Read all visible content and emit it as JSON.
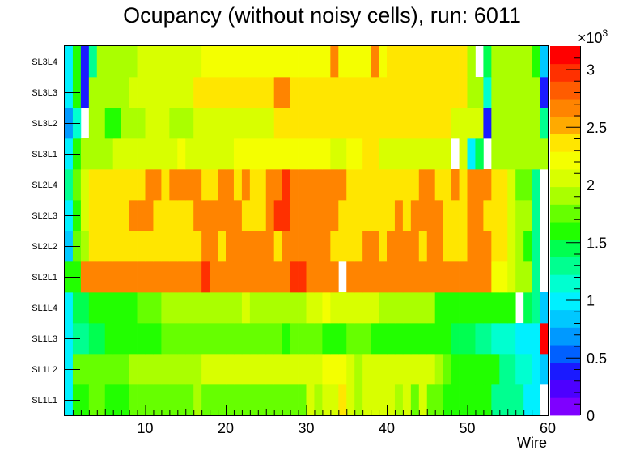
{
  "chart_data": {
    "type": "heatmap",
    "title": "Ocupancy (without noisy cells), run: 6011",
    "xlabel": "Wire",
    "ylabel": "",
    "x_range": [
      0,
      60
    ],
    "x_ticks": [
      10,
      20,
      30,
      40,
      50,
      60
    ],
    "rows": [
      "SL1L1",
      "SL1L2",
      "SL1L3",
      "SL1L4",
      "SL2L1",
      "SL2L2",
      "SL2L3",
      "SL2L4",
      "SL3L1",
      "SL3L2",
      "SL3L3",
      "SL3L4"
    ],
    "z_range": [
      0,
      3200
    ],
    "z_ticks": [
      0,
      500,
      1000,
      1500,
      2000,
      2500,
      3000
    ],
    "z_tick_labels": [
      "0",
      "0.5",
      "1",
      "1.5",
      "2",
      "2.5",
      "3"
    ],
    "z_multiplier": "×10",
    "z_multiplier_exp": "3",
    "palette": [
      "#7f00ff",
      "#4d00ff",
      "#1a1aff",
      "#0060ff",
      "#0099ff",
      "#00c8ff",
      "#00f0ff",
      "#00ffd0",
      "#00ff90",
      "#00ff50",
      "#22ff00",
      "#66ff00",
      "#aaff00",
      "#d8ff00",
      "#f4ff00",
      "#ffe600",
      "#ffaa00",
      "#ff8400",
      "#ff5c00",
      "#ff3000",
      "#ff0000"
    ],
    "values": [
      [
        1000,
        1650,
        1650,
        1800,
        1800,
        1650,
        1650,
        1650,
        1750,
        1750,
        1750,
        1750,
        1750,
        1750,
        1750,
        1750,
        1950,
        1800,
        1800,
        1800,
        1800,
        1800,
        1800,
        1800,
        1800,
        1800,
        1800,
        1800,
        1800,
        1800,
        2050,
        1950,
        2050,
        2050,
        2300,
        2050,
        1950,
        2050,
        2050,
        2050,
        2050,
        1950,
        2050,
        1800,
        2050,
        1800,
        1800,
        1650,
        1650,
        1650,
        1650,
        1650,
        1650,
        1350,
        1350,
        1250,
        1250,
        1050,
        1050,
        -1
      ],
      [
        1000,
        1750,
        1750,
        1750,
        1750,
        1750,
        1750,
        1750,
        1950,
        1950,
        1950,
        1950,
        1950,
        1950,
        1950,
        1950,
        1950,
        2050,
        2050,
        2050,
        2050,
        2050,
        2050,
        2050,
        2050,
        2050,
        2050,
        2050,
        2050,
        2050,
        2050,
        2050,
        2150,
        2150,
        2150,
        2050,
        1950,
        2050,
        2050,
        2050,
        2050,
        2050,
        2050,
        2050,
        2050,
        2050,
        1950,
        1750,
        1650,
        1650,
        1650,
        1650,
        1650,
        1650,
        1350,
        1350,
        1200,
        1200,
        950,
        850
      ],
      [
        1000,
        1350,
        1350,
        1450,
        1450,
        1650,
        1650,
        1650,
        1650,
        1650,
        1650,
        1650,
        1750,
        1750,
        1750,
        1750,
        1750,
        1750,
        1750,
        1750,
        1750,
        1750,
        1750,
        1750,
        1750,
        1750,
        1750,
        1650,
        1750,
        1750,
        1750,
        1750,
        1650,
        1650,
        1650,
        1750,
        1750,
        1750,
        1650,
        1650,
        1650,
        1650,
        1650,
        1650,
        1650,
        1650,
        1650,
        1550,
        1450,
        1450,
        1450,
        1350,
        1350,
        1150,
        1150,
        1150,
        1050,
        1050,
        1050,
        3100
      ],
      [
        1000,
        1450,
        1450,
        1650,
        1650,
        1650,
        1650,
        1650,
        1650,
        1750,
        1750,
        1750,
        1950,
        1950,
        1950,
        1950,
        1950,
        1950,
        1950,
        1950,
        1950,
        1950,
        2050,
        1950,
        1950,
        1950,
        1950,
        1950,
        1950,
        1950,
        2050,
        2050,
        2150,
        2050,
        2050,
        2050,
        2050,
        2050,
        2050,
        1950,
        1950,
        1950,
        1950,
        1950,
        1950,
        1950,
        1650,
        1650,
        1650,
        1650,
        1650,
        1650,
        1650,
        1650,
        1650,
        1650,
        -1,
        1450,
        1250,
        850
      ],
      [
        1550,
        1550,
        2650,
        2650,
        2650,
        2650,
        2650,
        2650,
        2650,
        2650,
        2650,
        2650,
        2650,
        2650,
        2650,
        2650,
        2650,
        2900,
        2650,
        2650,
        2650,
        2650,
        2650,
        2650,
        2650,
        2650,
        2650,
        2650,
        2900,
        2900,
        2650,
        2650,
        2650,
        2650,
        -1,
        2650,
        2650,
        2650,
        2650,
        2650,
        2650,
        2650,
        2650,
        2650,
        2650,
        2650,
        2650,
        2650,
        2650,
        2650,
        2650,
        2650,
        2650,
        2250,
        2250,
        2050,
        1850,
        1850,
        1250,
        -1
      ],
      [
        850,
        1750,
        1850,
        2350,
        2350,
        2350,
        2350,
        2350,
        2350,
        2350,
        2350,
        2350,
        2350,
        2350,
        2350,
        2350,
        2350,
        2650,
        2650,
        2350,
        2650,
        2650,
        2650,
        2650,
        2650,
        2650,
        2350,
        2650,
        2650,
        2650,
        2650,
        2650,
        2650,
        2350,
        2350,
        2350,
        2350,
        2650,
        2650,
        2350,
        2650,
        2650,
        2650,
        2650,
        2350,
        2650,
        2650,
        2350,
        2350,
        2350,
        2650,
        2650,
        2650,
        2350,
        2350,
        2050,
        1850,
        1650,
        1250,
        -1
      ],
      [
        1000,
        1550,
        2050,
        2350,
        2350,
        2350,
        2350,
        2350,
        2650,
        2650,
        2650,
        2350,
        2350,
        2350,
        2350,
        2350,
        2650,
        2650,
        2650,
        2650,
        2650,
        2650,
        2350,
        2350,
        2350,
        2650,
        2900,
        2900,
        2650,
        2650,
        2650,
        2650,
        2650,
        2650,
        2350,
        2350,
        2350,
        2350,
        2350,
        2350,
        2350,
        2650,
        2350,
        2650,
        2650,
        2650,
        2650,
        2350,
        2350,
        2350,
        2650,
        2650,
        2350,
        2350,
        2350,
        2050,
        1850,
        1850,
        1250,
        -1
      ],
      [
        1300,
        1750,
        2050,
        2350,
        2350,
        2350,
        2350,
        2350,
        2350,
        2350,
        2650,
        2650,
        2350,
        2650,
        2650,
        2650,
        2650,
        2350,
        2350,
        2650,
        2650,
        2350,
        2650,
        2350,
        2350,
        2650,
        2650,
        2900,
        2650,
        2650,
        2650,
        2650,
        2650,
        2650,
        2650,
        2350,
        2350,
        2350,
        2350,
        2350,
        2350,
        2350,
        2350,
        2350,
        2650,
        2650,
        2350,
        2350,
        2650,
        2350,
        2650,
        2650,
        2650,
        2350,
        2350,
        2050,
        1750,
        1750,
        1250,
        -1
      ],
      [
        1000,
        1650,
        1850,
        1850,
        1950,
        1950,
        2050,
        2050,
        2050,
        2050,
        2050,
        2050,
        2050,
        2050,
        2150,
        2050,
        2050,
        2050,
        2050,
        2050,
        2050,
        2150,
        2150,
        2150,
        2150,
        2150,
        2150,
        2150,
        2150,
        2150,
        2150,
        2150,
        2150,
        2050,
        2050,
        2150,
        2150,
        2350,
        2350,
        2050,
        2050,
        2050,
        2050,
        2050,
        2050,
        2050,
        2050,
        2050,
        -1,
        2050,
        1050,
        1450,
        -1,
        1850,
        1850,
        1850,
        1850,
        1850,
        1850,
        1850
      ],
      [
        700,
        1100,
        -1,
        1850,
        1850,
        1650,
        1650,
        1950,
        1950,
        1950,
        2050,
        2050,
        2050,
        1950,
        1950,
        1950,
        2050,
        2050,
        2050,
        2050,
        2050,
        2050,
        2050,
        2050,
        2050,
        2050,
        2350,
        2350,
        2350,
        2350,
        2350,
        2350,
        2350,
        2350,
        2350,
        2350,
        2350,
        2350,
        2350,
        2350,
        2350,
        2350,
        2350,
        2350,
        2350,
        2350,
        2350,
        2350,
        2050,
        2050,
        2050,
        2050,
        400,
        1850,
        1850,
        1850,
        1850,
        1850,
        1850,
        1250
      ],
      [
        1000,
        1650,
        450,
        1850,
        1850,
        1950,
        1950,
        1950,
        2050,
        2050,
        2050,
        2050,
        2050,
        2050,
        2050,
        2050,
        2350,
        2350,
        2350,
        2350,
        2350,
        2350,
        2350,
        2350,
        2350,
        2350,
        2650,
        2650,
        2350,
        2350,
        2350,
        2350,
        2350,
        2350,
        2350,
        2350,
        2350,
        2350,
        2350,
        2350,
        2350,
        2350,
        2350,
        2350,
        2350,
        2350,
        2350,
        2350,
        2350,
        2350,
        1950,
        1950,
        1150,
        1850,
        1850,
        1850,
        1850,
        1850,
        1850,
        450
      ],
      [
        1000,
        1650,
        450,
        1350,
        1850,
        1950,
        1950,
        1950,
        1950,
        2050,
        2050,
        2050,
        2050,
        2050,
        2050,
        2050,
        2050,
        2150,
        2150,
        2150,
        2150,
        2150,
        2150,
        2150,
        2150,
        2150,
        2150,
        2150,
        2150,
        2150,
        2150,
        2150,
        2150,
        2650,
        2150,
        2150,
        2150,
        2150,
        2650,
        2150,
        2350,
        2350,
        2350,
        2350,
        2350,
        2350,
        2350,
        2350,
        2350,
        2350,
        1850,
        -1,
        1450,
        1850,
        1850,
        1850,
        1850,
        1850,
        1650,
        900
      ]
    ]
  }
}
